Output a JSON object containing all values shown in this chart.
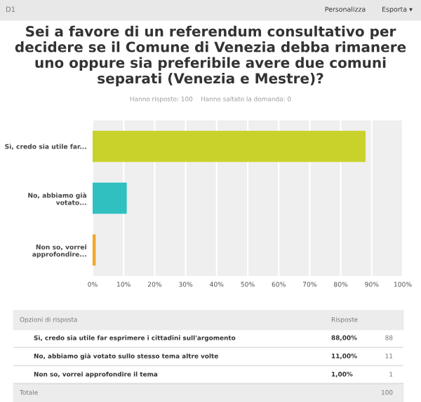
{
  "chart_data": {
    "type": "bar",
    "orientation": "horizontal",
    "title": "Sei a favore di un referendum consultativo per decidere se il Comune di Venezia debba rimanere uno oppure sia preferibile avere due comuni separati (Venezia e Mestre)?",
    "subtitle": "Hanno risposto: 100    Hanno saltato la domanda: 0",
    "categories": [
      "Sì, credo sia utile far...",
      "No, abbiamo già votato...",
      "Non so, vorrei approfondire..."
    ],
    "values": [
      88,
      11,
      1
    ],
    "colors": [
      "#c9d22b",
      "#2fc0bf",
      "#f4a62a"
    ],
    "xlim": [
      0,
      100
    ],
    "xticks": [
      {
        "value": 0,
        "label": "0%"
      },
      {
        "value": 10,
        "label": "10%"
      },
      {
        "value": 20,
        "label": "20%"
      },
      {
        "value": 30,
        "label": "30%"
      },
      {
        "value": 40,
        "label": "40%"
      },
      {
        "value": 50,
        "label": "50%"
      },
      {
        "value": 60,
        "label": "60%"
      },
      {
        "value": 70,
        "label": "70%"
      },
      {
        "value": 80,
        "label": "80%"
      },
      {
        "value": 90,
        "label": "90%"
      },
      {
        "value": 100,
        "label": "100%"
      }
    ],
    "grid": "x",
    "annotations": [
      "D1",
      "Personalizza",
      "Esporta ▾",
      "Opzioni di risposta",
      "Risposte",
      "Sì, credo sia utile far esprimere i cittadini sull'argomento",
      "No, abbiamo già votato sullo stesso tema altre volte",
      "Non so, vorrei approfondire il tema",
      "88,00%",
      "11,00%",
      "1,00%",
      "88",
      "11",
      "1",
      "Totale",
      "100"
    ]
  }
}
